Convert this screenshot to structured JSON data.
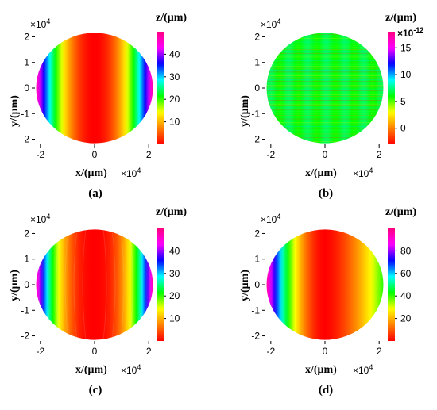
{
  "chart_data": [
    {
      "panel": "a",
      "type": "heatmap",
      "caption": "(a)",
      "ylabel": "y/(μm)",
      "xlabel": "x/(μm)",
      "x_multiplier": "×10",
      "x_multiplier_exp": "4",
      "y_multiplier": "×10",
      "y_multiplier_exp": "4",
      "xlim": [
        -2.2,
        2.2
      ],
      "ylim": [
        -2.2,
        2.2
      ],
      "x_ticks": [
        -2,
        0,
        2
      ],
      "y_ticks": [
        2,
        1,
        0,
        -1,
        -2
      ],
      "colorbar": {
        "title": "z/(μm)",
        "multiplier": "",
        "multiplier_exp": "",
        "ticks": [
          40,
          30,
          20,
          10
        ],
        "range": [
          0,
          50
        ]
      },
      "surface": "quadratic in x only (vertical stripes), z = 50·(x/2.2)², minimum at x = 0"
    },
    {
      "panel": "b",
      "type": "heatmap",
      "caption": "(b)",
      "ylabel": "y/(μm)",
      "xlabel": "x/(μm)",
      "x_multiplier": "×10",
      "x_multiplier_exp": "4",
      "y_multiplier": "×10",
      "y_multiplier_exp": "4",
      "xlim": [
        -2.2,
        2.2
      ],
      "ylim": [
        -2.2,
        2.2
      ],
      "x_ticks": [
        -2,
        0,
        2
      ],
      "y_ticks": [
        2,
        1,
        0,
        -1,
        -2
      ],
      "colorbar": {
        "title": "z/(μm)",
        "multiplier": "×10",
        "multiplier_exp": "-12",
        "ticks": [
          15,
          10,
          5,
          0
        ],
        "range": [
          -3,
          18
        ]
      },
      "surface": "residual noise near zero, mostly yellow-green with horizontal streaks"
    },
    {
      "panel": "c",
      "type": "heatmap",
      "caption": "(c)",
      "ylabel": "y/(μm)",
      "xlabel": "x/(μm)",
      "x_multiplier": "×10",
      "x_multiplier_exp": "4",
      "y_multiplier": "×10",
      "y_multiplier_exp": "4",
      "xlim": [
        -2.2,
        2.2
      ],
      "ylim": [
        -2.2,
        2.2
      ],
      "x_ticks": [
        -2,
        0,
        2
      ],
      "y_ticks": [
        2,
        1,
        0,
        -1,
        -2
      ],
      "colorbar": {
        "title": "z/(μm)",
        "multiplier": "",
        "multiplier_exp": "",
        "ticks": [
          40,
          30,
          20,
          10
        ],
        "range": [
          0,
          50
        ]
      },
      "surface": "quadratic in x with curved bands (barrel shaped contours)"
    },
    {
      "panel": "d",
      "type": "heatmap",
      "caption": "(d)",
      "ylabel": "y/(μm)",
      "xlabel": "x/(μm)",
      "x_multiplier": "×10",
      "x_multiplier_exp": "4",
      "y_multiplier": "×10",
      "y_multiplier_exp": "4",
      "xlim": [
        -2.2,
        2.2
      ],
      "ylim": [
        -2.2,
        2.2
      ],
      "x_ticks": [
        -2,
        0,
        2
      ],
      "y_ticks": [
        2,
        1,
        0,
        -1,
        -2
      ],
      "colorbar": {
        "title": "z/(μm)",
        "multiplier": "",
        "multiplier_exp": "",
        "ticks": [
          80,
          60,
          40,
          20
        ],
        "range": [
          0,
          100
        ]
      },
      "surface": "asymmetric in x: steep rise toward -x (to ~100), gentle rise toward +x (to ~40)"
    }
  ],
  "colormap": [
    "#ff0000",
    "#ff8000",
    "#ffff00",
    "#00ff00",
    "#00ffff",
    "#0000ff",
    "#ff00ff",
    "#ff0080"
  ]
}
